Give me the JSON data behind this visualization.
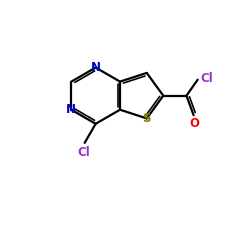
{
  "bg_color": "#ffffff",
  "bond_color": "#000000",
  "N_color": "#0000cc",
  "S_color": "#808000",
  "Cl_label_color": "#9933cc",
  "O_color": "#ff0000",
  "font_size": 8.5,
  "line_width": 1.6,
  "figsize": [
    2.5,
    2.5
  ],
  "dpi": 100,
  "xlim": [
    0,
    10
  ],
  "ylim": [
    0,
    10
  ]
}
